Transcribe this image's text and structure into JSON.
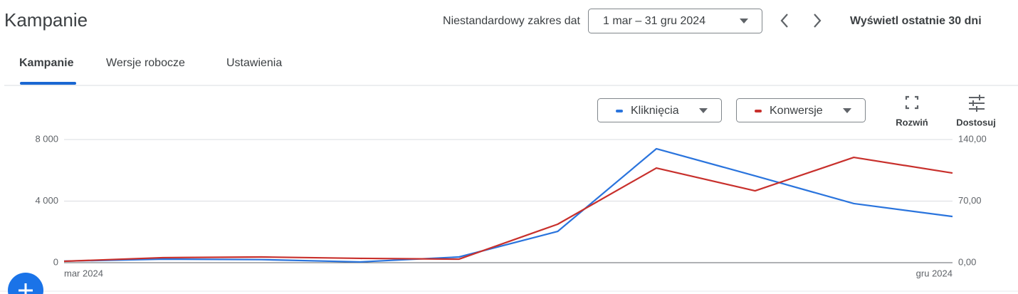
{
  "header": {
    "title": "Kampanie",
    "date_range_label": "Niestandardowy zakres dat",
    "date_range": "1 mar – 31 gru 2024",
    "last_30_link": "Wyświetl ostatnie 30 dni"
  },
  "tabs": [
    "Kampanie",
    "Wersje robocze",
    "Ustawienia"
  ],
  "chart_controls": {
    "expand": "Rozwiń",
    "customize": "Dostosuj"
  },
  "chart_data": {
    "type": "line",
    "categories": [
      "mar 2024",
      null,
      null,
      null,
      null,
      null,
      null,
      null,
      null,
      "gru 2024"
    ],
    "series": [
      {
        "name": "Kliknięcia",
        "color": "#2a74dd",
        "values": [
          100,
          230,
          200,
          50,
          370,
          2030,
          7400,
          5640,
          3840,
          3000
        ]
      },
      {
        "name": "Konwersje",
        "color": "#c8302c",
        "axis": "y2",
        "values": [
          1.6,
          5.7,
          6.5,
          4.9,
          4,
          43.7,
          107.6,
          81.7,
          119.7,
          101.9
        ]
      }
    ],
    "ylim": [
      0,
      8000
    ],
    "yticks": [
      0,
      {
        "value": 4000,
        "label": "4 000"
      },
      {
        "value": 8000,
        "label": "8 000"
      }
    ],
    "y2lim": [
      0,
      140
    ],
    "y2ticks": [
      {
        "value": 0,
        "label": "0,00"
      },
      {
        "value": 70,
        "label": "70,00"
      },
      {
        "value": 140,
        "label": "140,00"
      }
    ],
    "grid": true
  }
}
